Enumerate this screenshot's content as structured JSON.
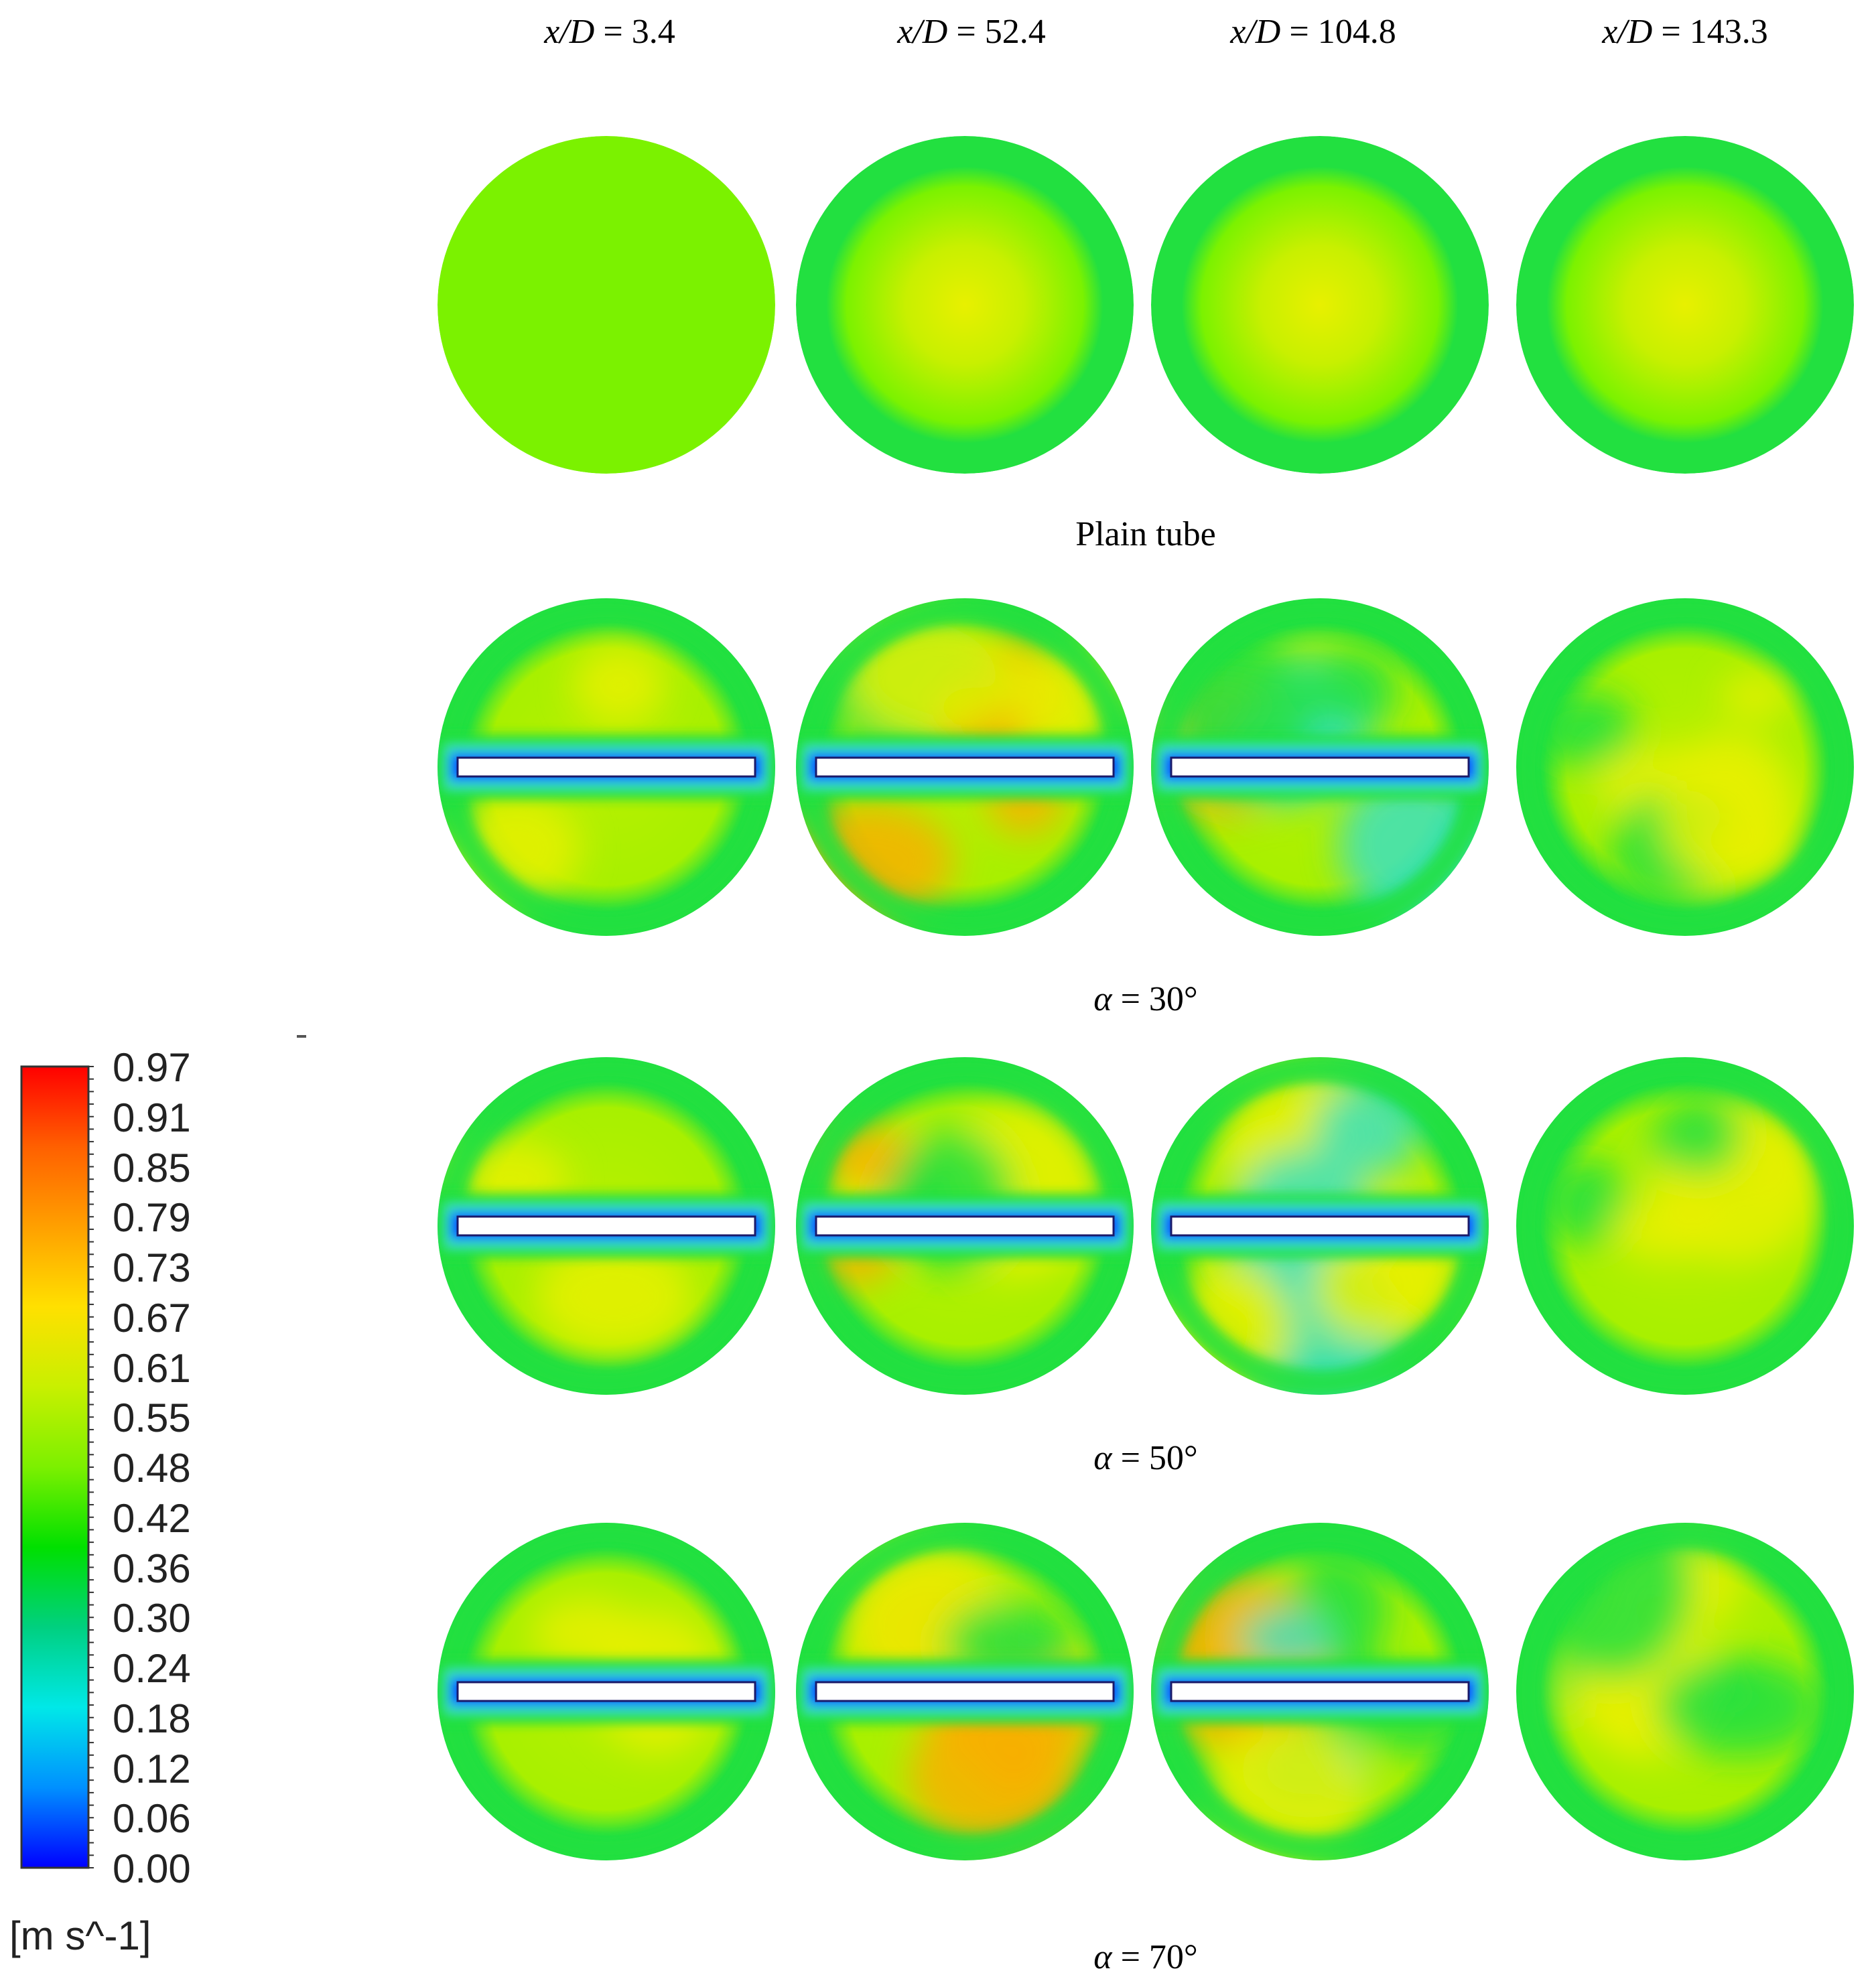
{
  "columns": [
    {
      "var": "x/D",
      "eq": " = 3.4"
    },
    {
      "var": "x/D",
      "eq": " = 52.4"
    },
    {
      "var": "x/D",
      "eq": " = 104.8"
    },
    {
      "var": "x/D",
      "eq": " = 143.3"
    }
  ],
  "rows": [
    {
      "label_plain": "Plain tube",
      "label_var": "",
      "label_eq": "",
      "twisted_tape": false
    },
    {
      "label_plain": "",
      "label_var": "α",
      "label_eq": " = 30°",
      "twisted_tape": true
    },
    {
      "label_plain": "",
      "label_var": "α",
      "label_eq": " = 50°",
      "twisted_tape": true
    },
    {
      "label_plain": "",
      "label_var": "α",
      "label_eq": " = 70°",
      "twisted_tape": true
    }
  ],
  "colorbar": {
    "ticks": [
      "0.97",
      "0.91",
      "0.85",
      "0.79",
      "0.73",
      "0.67",
      "0.61",
      "0.55",
      "0.48",
      "0.42",
      "0.36",
      "0.30",
      "0.24",
      "0.18",
      "0.12",
      "0.06",
      "0.00"
    ],
    "units": "[m s^-1]",
    "colors": [
      "#ff0000",
      "#ff6000",
      "#ffa000",
      "#ffe000",
      "#c8f000",
      "#7cf000",
      "#00e000",
      "#00d080",
      "#00e8e8",
      "#0090ff",
      "#0000ff"
    ]
  },
  "palette": {
    "wall_green": "#22e040",
    "core_green": "#7bf200",
    "yellow": "#e8f000",
    "orange": "#f8b000",
    "cyan": "#3ce0c0",
    "blue": "#0040ff",
    "tape": "#ffffff"
  }
}
